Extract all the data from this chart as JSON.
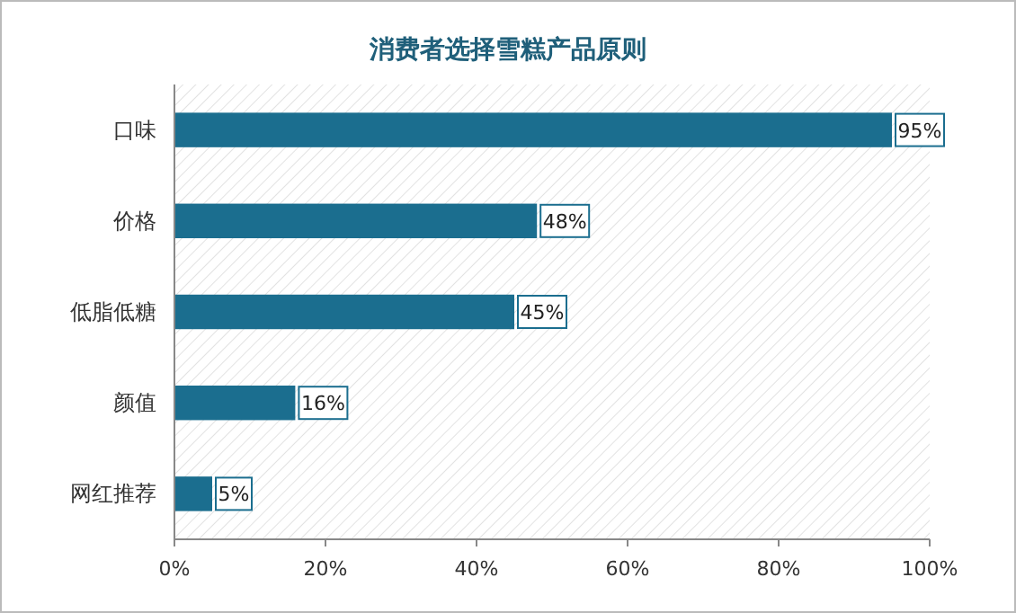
{
  "chart_data": {
    "type": "bar",
    "orientation": "horizontal",
    "title": "消费者选择雪糕产品原则",
    "categories": [
      "口味",
      "价格",
      "低脂低糖",
      "颜值",
      "网红推荐"
    ],
    "values": [
      95,
      48,
      45,
      16,
      5
    ],
    "value_labels": [
      "95%",
      "48%",
      "45%",
      "16%",
      "5%"
    ],
    "color": "#1b6e8f",
    "xlim": [
      0,
      100
    ],
    "xticks": [
      {
        "value": 0,
        "label": "0%"
      },
      {
        "value": 20,
        "label": "20%"
      },
      {
        "value": 40,
        "label": "40%"
      },
      {
        "value": 60,
        "label": "60%"
      },
      {
        "value": 80,
        "label": "80%"
      },
      {
        "value": 100,
        "label": "100%"
      }
    ],
    "grid": false
  }
}
